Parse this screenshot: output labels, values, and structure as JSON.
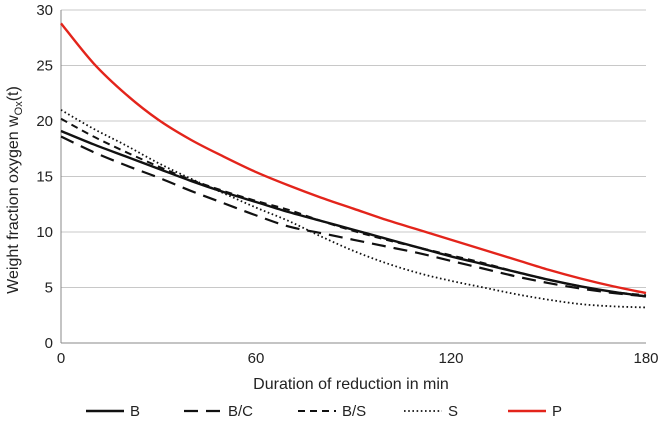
{
  "chart_data": {
    "type": "line",
    "xlabel": "Duration of reduction in min",
    "ylabel": {
      "main": "Weight fraction oxygen w",
      "sub": "Ox",
      "suffix": "(t)"
    },
    "xlim": [
      0,
      180
    ],
    "ylim": [
      0,
      30
    ],
    "xticks": [
      "0",
      "60",
      "120",
      "180"
    ],
    "yticks": [
      "0",
      "5",
      "10",
      "15",
      "20",
      "25",
      "30"
    ],
    "grid": "horizontal",
    "legend_position": "bottom",
    "x": [
      0,
      10,
      20,
      30,
      40,
      50,
      60,
      70,
      80,
      90,
      100,
      110,
      120,
      130,
      140,
      150,
      160,
      170,
      180
    ],
    "series": [
      {
        "name": "B",
        "color": "#111111",
        "dash": "solid",
        "width": 2.4,
        "values": [
          19.1,
          17.9,
          16.8,
          15.7,
          14.6,
          13.6,
          12.7,
          11.8,
          11.0,
          10.2,
          9.4,
          8.6,
          7.8,
          7.1,
          6.4,
          5.7,
          5.1,
          4.6,
          4.2
        ]
      },
      {
        "name": "B/C",
        "color": "#111111",
        "dash": "14 8",
        "width": 2.2,
        "values": [
          18.6,
          17.2,
          16.0,
          14.9,
          13.7,
          12.6,
          11.5,
          10.5,
          9.9,
          9.3,
          8.7,
          8.1,
          7.4,
          6.7,
          6.0,
          5.4,
          4.9,
          4.5,
          4.2
        ]
      },
      {
        "name": "B/S",
        "color": "#111111",
        "dash": "7 5",
        "width": 2.0,
        "values": [
          20.2,
          18.6,
          17.2,
          15.9,
          14.7,
          13.7,
          12.8,
          12.0,
          11.0,
          10.1,
          9.3,
          8.6,
          7.9,
          7.2,
          6.4,
          5.7,
          5.1,
          4.6,
          4.3
        ]
      },
      {
        "name": "S",
        "color": "#111111",
        "dash": "1.6 2.6",
        "width": 1.8,
        "values": [
          21.0,
          19.3,
          17.8,
          16.2,
          14.8,
          13.5,
          12.2,
          11.0,
          9.6,
          8.3,
          7.2,
          6.3,
          5.6,
          5.0,
          4.4,
          3.9,
          3.5,
          3.3,
          3.2
        ]
      },
      {
        "name": "P",
        "color": "#e3241b",
        "dash": "solid",
        "width": 2.4,
        "values": [
          28.8,
          25.2,
          22.4,
          20.1,
          18.3,
          16.8,
          15.4,
          14.2,
          13.1,
          12.1,
          11.1,
          10.2,
          9.3,
          8.4,
          7.5,
          6.6,
          5.8,
          5.1,
          4.5
        ]
      }
    ]
  }
}
